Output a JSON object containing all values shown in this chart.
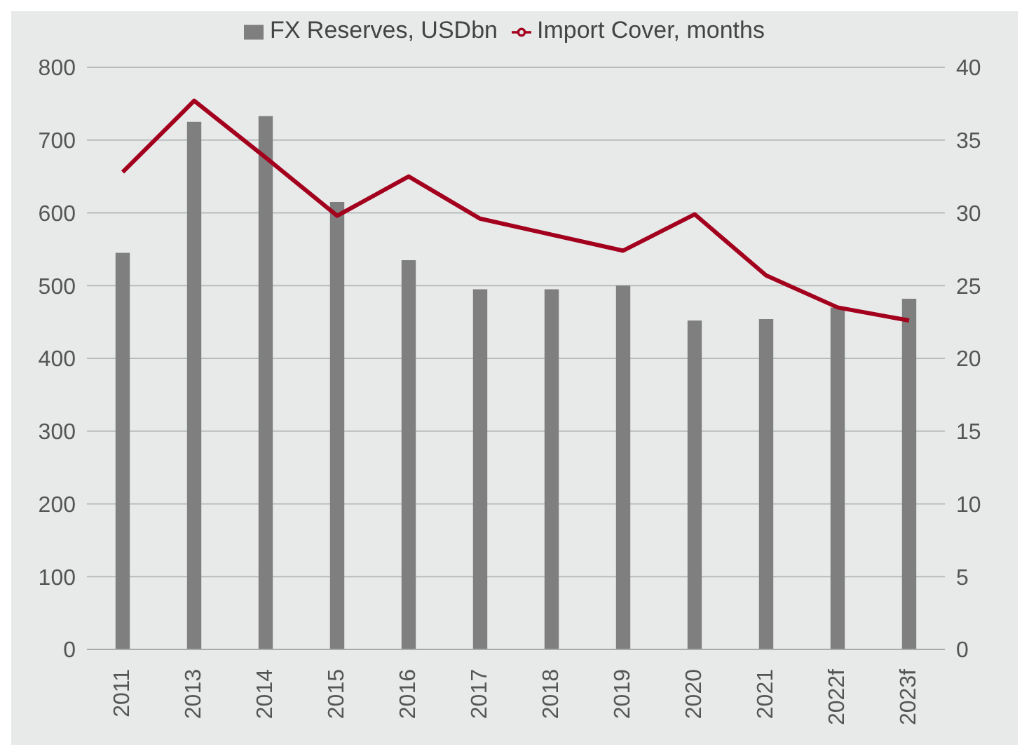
{
  "chart_data": {
    "type": "bar",
    "categories": [
      "2011",
      "2013",
      "2014",
      "2015",
      "2016",
      "2017",
      "2018",
      "2019",
      "2020",
      "2021",
      "2022f",
      "2023f"
    ],
    "series": [
      {
        "name": "FX Reserves, USDbn",
        "color": "#7f7f7f",
        "values": [
          545,
          725,
          733,
          615,
          535,
          495,
          495,
          500,
          452,
          454,
          470,
          482
        ]
      },
      {
        "name": "Import Cover, months",
        "type": "line",
        "axis": "y2",
        "color": "#a3001e",
        "values": [
          32.8,
          37.7,
          33.8,
          29.8,
          32.5,
          29.6,
          28.5,
          27.4,
          29.9,
          25.7,
          23.5,
          22.6
        ]
      }
    ],
    "ylim": [
      0,
      800
    ],
    "yticks": [
      0,
      100,
      200,
      300,
      400,
      500,
      600,
      700,
      800
    ],
    "y2lim": [
      0,
      40
    ],
    "y2ticks": [
      0,
      5,
      10,
      15,
      20,
      25,
      30,
      35,
      40
    ],
    "grid": "y",
    "legend": "top",
    "marker": "none"
  }
}
